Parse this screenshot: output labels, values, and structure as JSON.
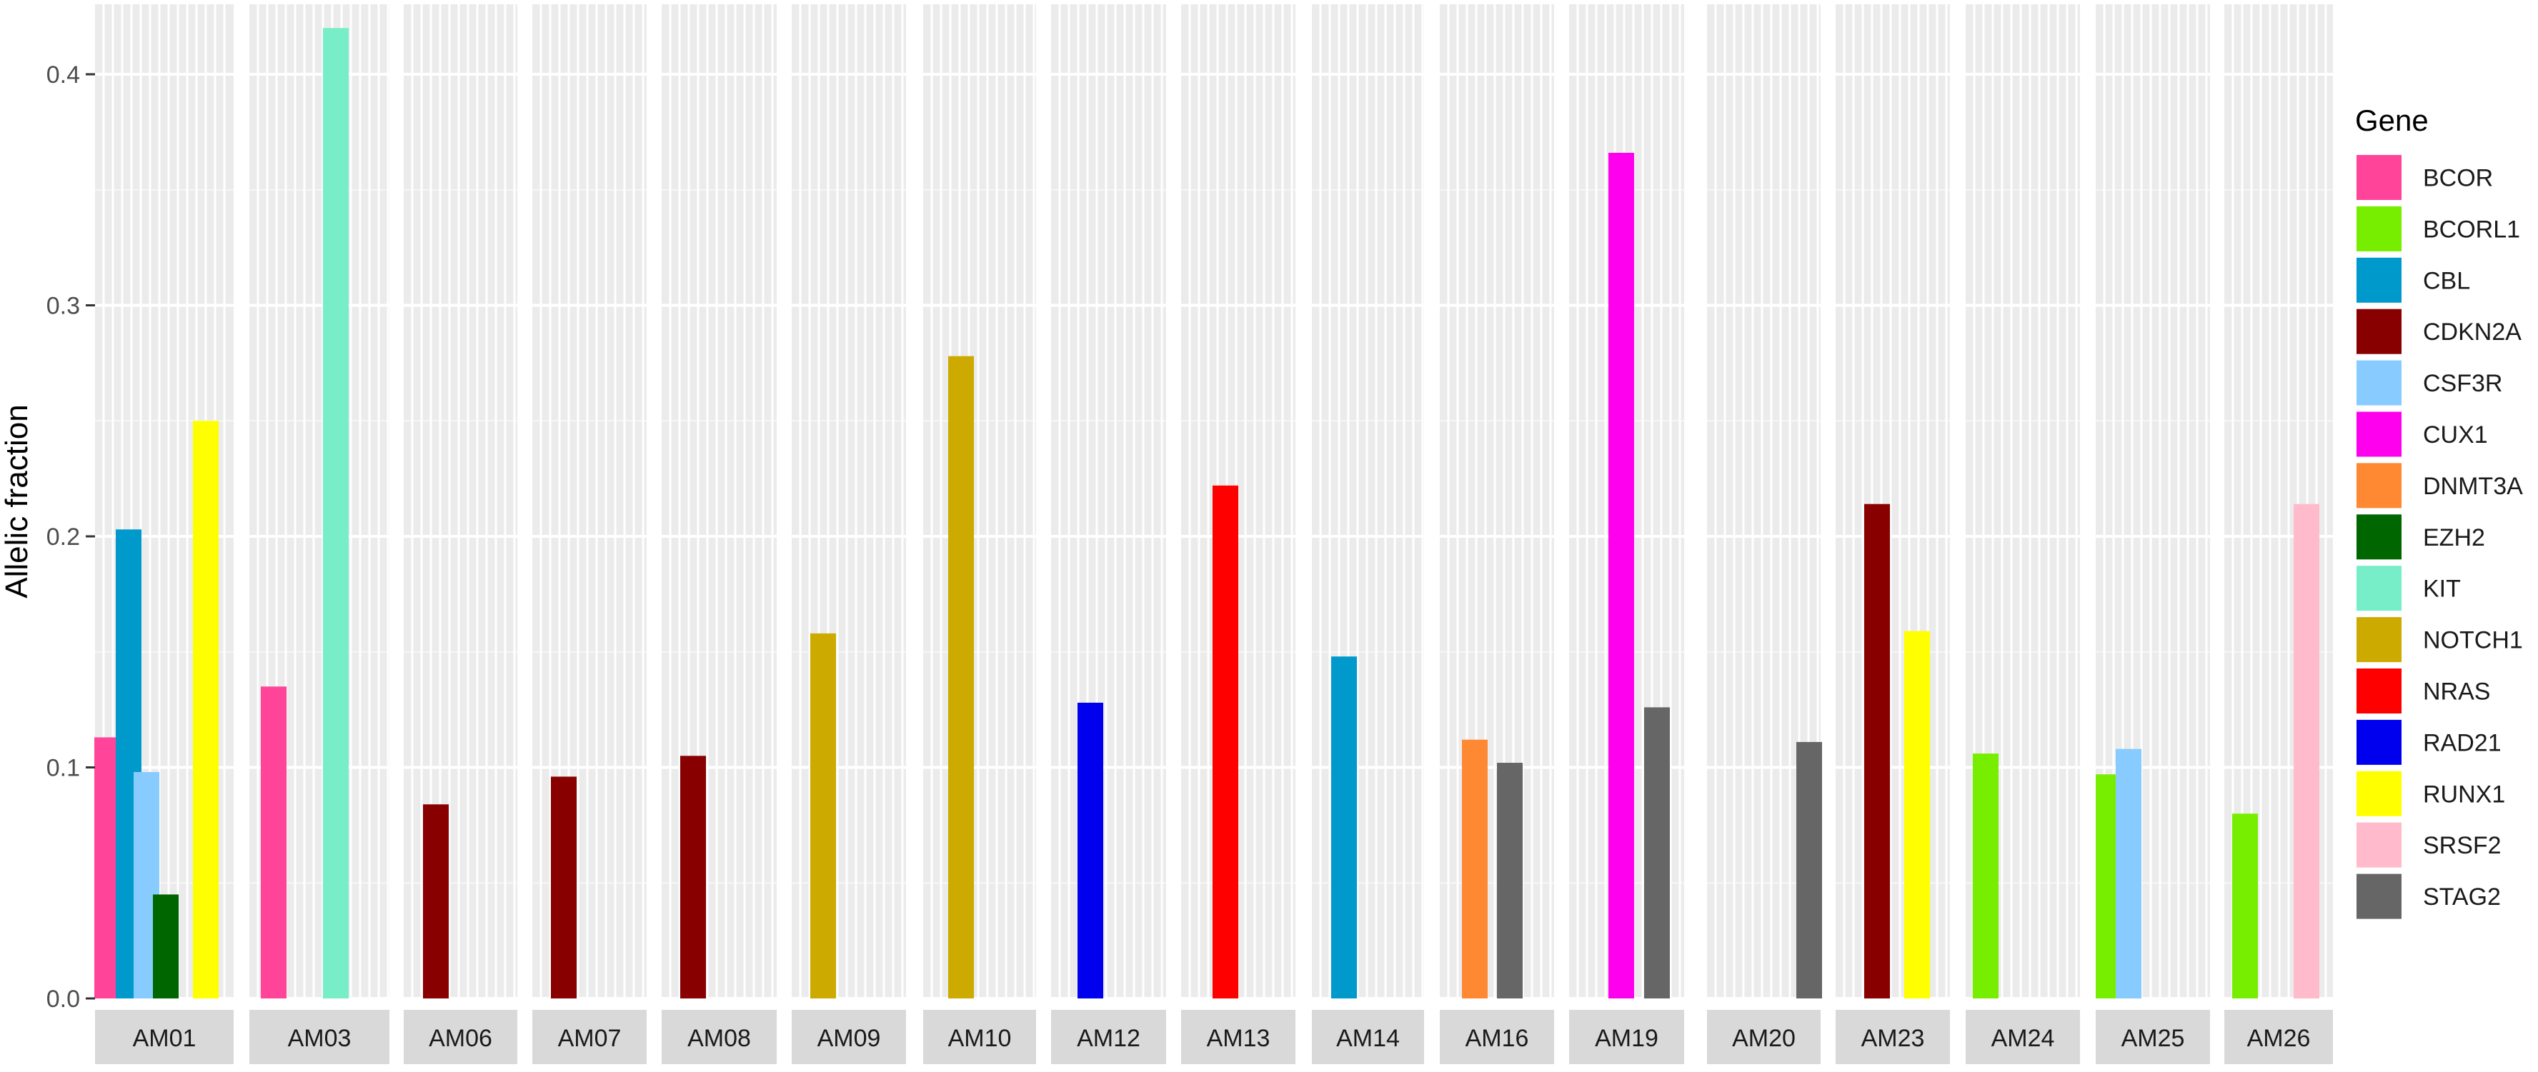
{
  "chart_data": {
    "type": "bar",
    "faceted": true,
    "ylabel": "Allelic fraction",
    "xlabel": "",
    "ylim": [
      0,
      0.43
    ],
    "y_ticks": [
      "0.0",
      "0.1",
      "0.2",
      "0.3",
      "0.4"
    ],
    "y_tick_values": [
      0.0,
      0.1,
      0.2,
      0.3,
      0.4
    ],
    "grid": true,
    "legend": {
      "title": "Gene",
      "position": "right",
      "entries": [
        {
          "name": "BCOR",
          "color": "#FF4499"
        },
        {
          "name": "BCORL1",
          "color": "#77EE00"
        },
        {
          "name": "CBL",
          "color": "#0099CC"
        },
        {
          "name": "CDKN2A",
          "color": "#880000"
        },
        {
          "name": "CSF3R",
          "color": "#88CCFF"
        },
        {
          "name": "CUX1",
          "color": "#FF00EE"
        },
        {
          "name": "DNMT3A",
          "color": "#FF8833"
        },
        {
          "name": "EZH2",
          "color": "#006600"
        },
        {
          "name": "KIT",
          "color": "#77EEC8"
        },
        {
          "name": "NOTCH1",
          "color": "#CCAA00"
        },
        {
          "name": "NRAS",
          "color": "#FF0000"
        },
        {
          "name": "RAD21",
          "color": "#0000EE"
        },
        {
          "name": "RUNX1",
          "color": "#FFFF00"
        },
        {
          "name": "SRSF2",
          "color": "#FFBBCC"
        },
        {
          "name": "STAG2",
          "color": "#666666"
        }
      ]
    },
    "facets": [
      {
        "label": "AM01",
        "bars": [
          {
            "gene": "BCOR",
            "value": 0.113
          },
          {
            "gene": "CBL",
            "value": 0.203
          },
          {
            "gene": "CSF3R",
            "value": 0.098
          },
          {
            "gene": "EZH2",
            "value": 0.045
          },
          {
            "gene": "RUNX1",
            "value": 0.25
          }
        ]
      },
      {
        "label": "AM03",
        "bars": [
          {
            "gene": "BCOR",
            "value": 0.135
          },
          {
            "gene": "KIT",
            "value": 0.42
          }
        ]
      },
      {
        "label": "AM06",
        "bars": [
          {
            "gene": "CDKN2A",
            "value": 0.084
          }
        ]
      },
      {
        "label": "AM07",
        "bars": [
          {
            "gene": "CDKN2A",
            "value": 0.096
          }
        ]
      },
      {
        "label": "AM08",
        "bars": [
          {
            "gene": "CDKN2A",
            "value": 0.105
          }
        ]
      },
      {
        "label": "AM09",
        "bars": [
          {
            "gene": "NOTCH1",
            "value": 0.158
          }
        ]
      },
      {
        "label": "AM10",
        "bars": [
          {
            "gene": "NOTCH1",
            "value": 0.278
          }
        ]
      },
      {
        "label": "AM12",
        "bars": [
          {
            "gene": "RAD21",
            "value": 0.128
          }
        ]
      },
      {
        "label": "AM13",
        "bars": [
          {
            "gene": "NRAS",
            "value": 0.222
          }
        ]
      },
      {
        "label": "AM14",
        "bars": [
          {
            "gene": "CBL",
            "value": 0.148
          }
        ]
      },
      {
        "label": "AM16",
        "bars": [
          {
            "gene": "DNMT3A",
            "value": 0.112
          },
          {
            "gene": "STAG2",
            "value": 0.102
          }
        ]
      },
      {
        "label": "AM19",
        "bars": [
          {
            "gene": "CUX1",
            "value": 0.366
          },
          {
            "gene": "STAG2",
            "value": 0.126
          }
        ]
      },
      {
        "label": "AM20",
        "bars": [
          {
            "gene": "STAG2",
            "value": 0.111
          }
        ]
      },
      {
        "label": "AM23",
        "bars": [
          {
            "gene": "CDKN2A",
            "value": 0.214
          },
          {
            "gene": "RUNX1",
            "value": 0.159
          }
        ]
      },
      {
        "label": "AM24",
        "bars": [
          {
            "gene": "BCORL1",
            "value": 0.106
          }
        ]
      },
      {
        "label": "AM25",
        "bars": [
          {
            "gene": "BCORL1",
            "value": 0.097
          },
          {
            "gene": "CSF3R",
            "value": 0.108
          }
        ]
      },
      {
        "label": "AM26",
        "bars": [
          {
            "gene": "BCORL1",
            "value": 0.08
          },
          {
            "gene": "SRSF2",
            "value": 0.214
          }
        ]
      }
    ]
  }
}
